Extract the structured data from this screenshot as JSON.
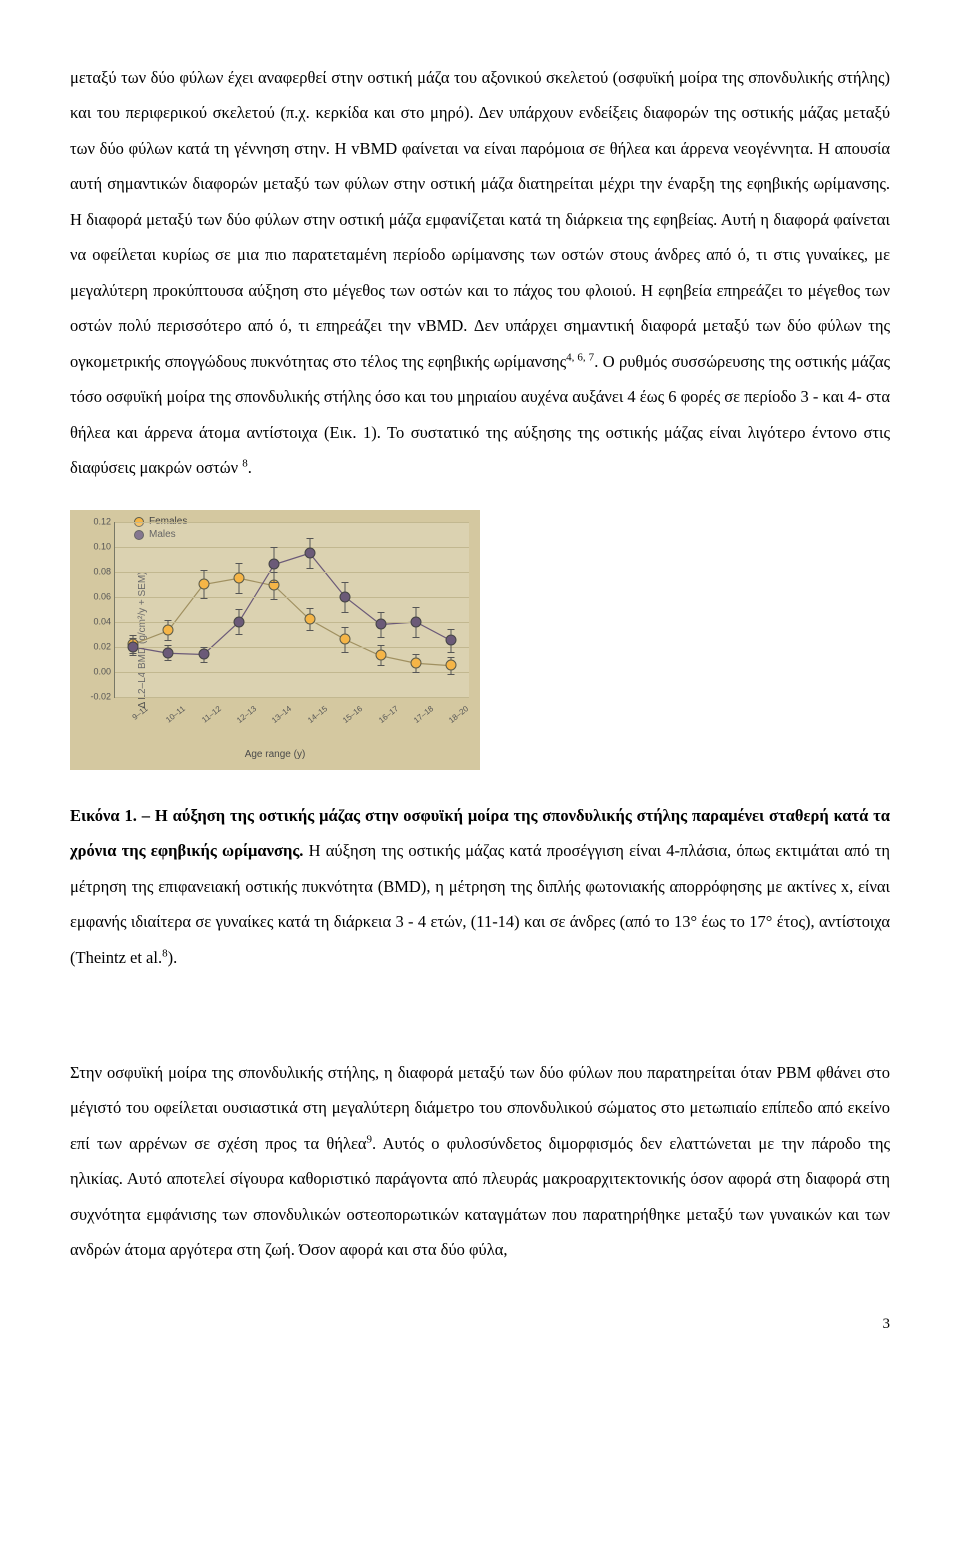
{
  "para1": "μεταξύ των δύο φύλων έχει αναφερθεί στην οστική μάζα του αξονικού σκελετού (οσφυϊκή μοίρα της σπονδυλικής στήλης) και του περιφερικού σκελετού (π.χ. κερκίδα και στο μηρό). Δεν υπάρχουν ενδείξεις διαφορών της οστικής μάζας μεταξύ των δύο φύλων κατά τη γέννηση στην. Η vBMD φαίνεται να είναι παρόμοια σε θήλεα και άρρενα νεογέννητα. Η απουσία αυτή σημαντικών διαφορών μεταξύ των φύλων στην οστική μάζα διατηρείται μέχρι την έναρξη της εφηβικής ωρίμανσης. Η διαφορά μεταξύ των δύο φύλων στην οστική μάζα εμφανίζεται κατά τη διάρκεια της εφηβείας. Αυτή η διαφορά φαίνεται να οφείλεται κυρίως σε μια πιο παρατεταμένη περίοδο ωρίμανσης των οστών στους άνδρες από ό, τι στις γυναίκες, με μεγαλύτερη προκύπτουσα αύξηση στο μέγεθος των οστών και το πάχος του φλοιού. Η εφηβεία επηρεάζει το μέγεθος των οστών πολύ περισσότερο από ό, τι επηρεάζει την vBMD. Δεν υπάρχει σημαντική διαφορά μεταξύ των δύο φύλων της ογκομετρικής σπογγώδους πυκνότητας στο τέλος της εφηβικής ωρίμανσης",
  "supA": "4, 6, 7",
  "para1b": ". Ο ρυθμός συσσώρευσης της οστικής μάζας τόσο οσφυϊκή μοίρα της σπονδυλικής στήλης όσο και του μηριαίου αυχένα αυξάνει 4 έως 6 φορές σε περίοδο 3 - και 4- στα θήλεα και άρρενα άτομα αντίστοιχα (Εικ. 1). Το συστατικό της αύξησης της οστικής μάζας είναι λιγότερο έντονο στις διαφύσεις μακρών οστών ",
  "supB": "8",
  "para1c": ".",
  "chart": {
    "type": "scatter-line",
    "background_color": "#d4c8a0",
    "ylabel": "Δ L2–L4 BMD (g/cm²/y + SEM)",
    "xlabel": "Age range (y)",
    "ylim": [
      -0.02,
      0.12
    ],
    "yticks": [
      -0.02,
      0.0,
      0.02,
      0.04,
      0.06,
      0.08,
      0.1,
      0.12
    ],
    "xcategories": [
      "9–11",
      "10–11",
      "11–12",
      "12–13",
      "13–14",
      "14–15",
      "15–16",
      "16–17",
      "17–18",
      "18–20"
    ],
    "grid_color": "#c2b890",
    "legend": {
      "position": "top-left"
    },
    "series": [
      {
        "name": "Females",
        "color": "#f5b547",
        "marker_border": "#5a5a49",
        "line_color": "#a09060",
        "values": [
          0.022,
          0.033,
          0.07,
          0.075,
          0.069,
          0.042,
          0.026,
          0.013,
          0.007,
          0.005
        ],
        "sem": [
          0.007,
          0.008,
          0.011,
          0.012,
          0.011,
          0.009,
          0.01,
          0.008,
          0.007,
          0.007
        ]
      },
      {
        "name": "Males",
        "color": "#6b5a78",
        "marker_border": "#444",
        "line_color": "#6b5a78",
        "values": [
          0.02,
          0.015,
          0.014,
          0.04,
          0.086,
          0.095,
          0.06,
          0.038,
          0.04,
          0.025
        ],
        "sem": [
          0.007,
          0.006,
          0.006,
          0.01,
          0.014,
          0.012,
          0.012,
          0.01,
          0.012,
          0.009
        ]
      }
    ]
  },
  "caption_bold": "Εικόνα 1. – Η αύξηση της οστικής μάζας στην οσφυϊκή μοίρα της σπονδυλικής στήλης παραμένει σταθερή κατά τα χρόνια της εφηβικής ωρίμανσης.",
  "caption_rest": " Η αύξηση της οστικής μάζας κατά προσέγγιση είναι 4-πλάσια, όπως εκτιμάται από τη μέτρηση της επιφανειακή οστικής πυκνότητα (BMD), η μέτρηση της διπλής φωτονιακής απορρόφησης με ακτίνες x, είναι εμφανής ιδιαίτερα σε γυναίκες κατά τη διάρκεια 3 - 4 ετών, (11-14) και σε άνδρες (από το 13° έως το 17° έτος), αντίστοιχα (Theintz et al.",
  "caption_sup": "8",
  "caption_end": ").",
  "para2a": "Στην οσφυϊκή μοίρα της σπονδυλικής στήλης, η διαφορά μεταξύ των δύο φύλων που παρατηρείται όταν PBM φθάνει στο μέγιστό του οφείλεται ουσιαστικά στη μεγαλύτερη διάμετρο του σπονδυλικού σώματος στο μετωπιαίο επίπεδο από εκείνο επί των αρρένων σε σχέση προς τα θήλεα",
  "supC": "9",
  "para2b": ". Αυτός ο φυλοσύνδετος διμορφισμός δεν ελαττώνεται με την πάροδο της ηλικίας. Αυτό αποτελεί σίγουρα καθοριστικό παράγοντα από πλευράς μακροαρχιτεκτονικής όσον αφορά στη διαφορά στη συχνότητα εμφάνισης των σπονδυλικών οστεοπορωτικών καταγμάτων που παρατηρήθηκε μεταξύ των γυναικών και των ανδρών άτομα αργότερα στη ζωή. Όσον αφορά και στα δύο φύλα,",
  "page_number": "3"
}
